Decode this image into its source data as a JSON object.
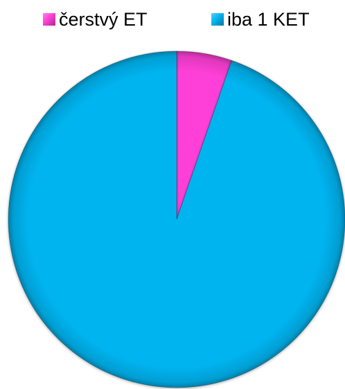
{
  "chart_data": {
    "type": "pie",
    "title": "",
    "legend_position": "top",
    "slices": [
      {
        "label": "čerstvý ET",
        "value": 5.3,
        "color": "#ff3fd8"
      },
      {
        "label": "iba 1 KET",
        "value": 94.7,
        "color": "#00b4f0"
      }
    ]
  }
}
